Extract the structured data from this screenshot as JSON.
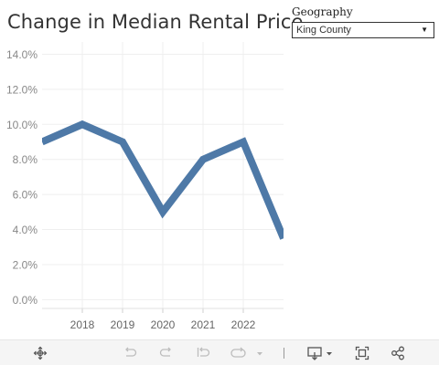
{
  "header": {
    "title": "Change in Median Rental Price"
  },
  "filter": {
    "label": "Geography",
    "selected": "King County"
  },
  "toolbar": {
    "icons": [
      "move-icon",
      "undo-icon",
      "redo-icon",
      "revert-icon",
      "refresh-icon",
      "download-icon",
      "fullscreen-icon",
      "share-icon"
    ]
  },
  "colors": {
    "line": "#4e79a7",
    "grid": "#efefef",
    "axis": "#888888"
  },
  "chart_data": {
    "type": "line",
    "title": "Change in Median Rental Price",
    "xlabel": "",
    "ylabel": "",
    "x": [
      2017,
      2018,
      2019,
      2020,
      2021,
      2022,
      2023
    ],
    "x_tick_labels": [
      "2018",
      "2019",
      "2020",
      "2021",
      "2022"
    ],
    "x_ticks": [
      2018,
      2019,
      2020,
      2021,
      2022
    ],
    "series": [
      {
        "values": [
          9.0,
          10.0,
          9.0,
          5.0,
          8.0,
          9.0,
          3.5
        ]
      }
    ],
    "y_ticks": [
      0,
      2,
      4,
      6,
      8,
      10,
      12,
      14
    ],
    "y_tick_labels": [
      "0.0%",
      "2.0%",
      "4.0%",
      "6.0%",
      "8.0%",
      "10.0%",
      "12.0%",
      "14.0%"
    ],
    "ylim": [
      -0.5,
      14.7
    ],
    "xlim": [
      2017,
      2023
    ],
    "grid": true,
    "legend": "none"
  }
}
